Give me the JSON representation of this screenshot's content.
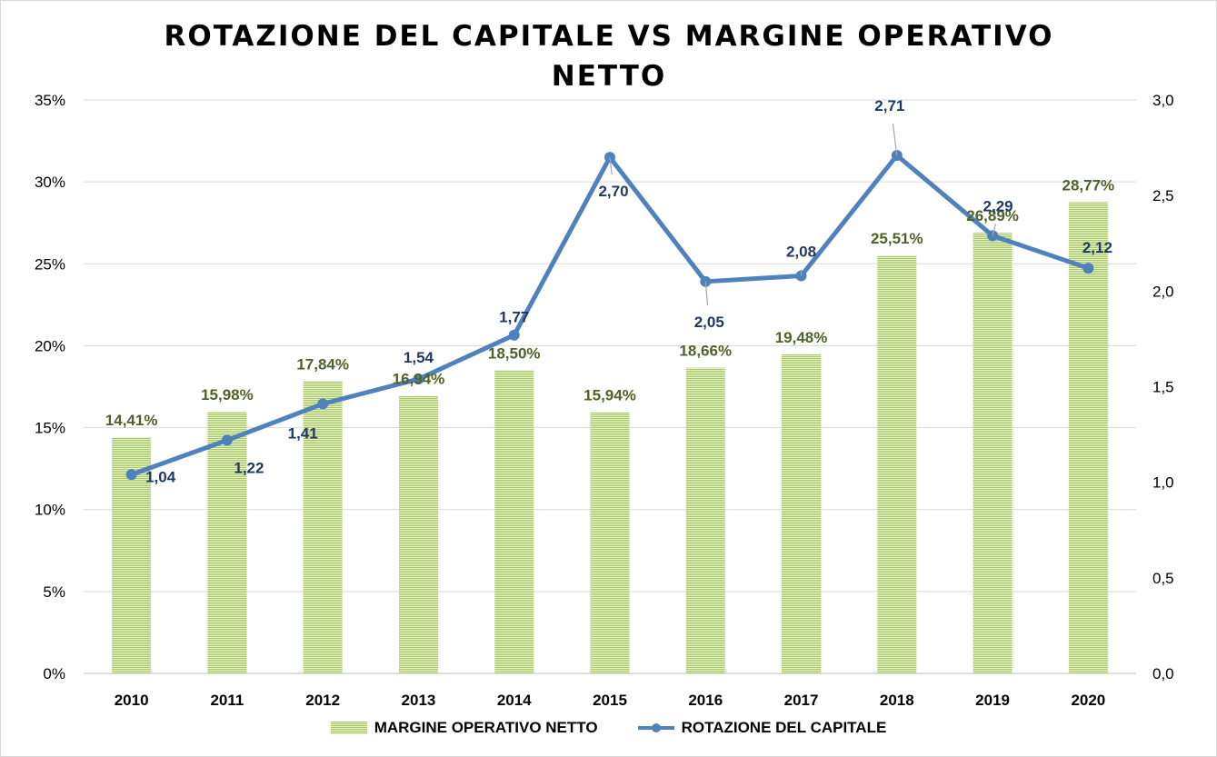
{
  "chart_data": {
    "type": "bar",
    "title": "ROTAZIONE DEL CAPITALE VS MARGINE OPERATIVO NETTO",
    "categories": [
      "2010",
      "2011",
      "2012",
      "2013",
      "2014",
      "2015",
      "2016",
      "2017",
      "2018",
      "2019",
      "2020"
    ],
    "series": [
      {
        "name": "MARGINE OPERATIVO  NETTO",
        "type": "bar",
        "axis": "left",
        "values": [
          14.41,
          15.98,
          17.84,
          16.94,
          18.5,
          15.94,
          18.66,
          19.48,
          25.51,
          26.89,
          28.77
        ],
        "labels": [
          "14,41%",
          "15,98%",
          "17,84%",
          "16,94%",
          "18,50%",
          "15,94%",
          "18,66%",
          "19,48%",
          "25,51%",
          "26,89%",
          "28,77%"
        ],
        "color": "#9bbb59",
        "label_color": "#4f6228"
      },
      {
        "name": "ROTAZIONE DEL CAPITALE",
        "type": "line",
        "axis": "right",
        "values": [
          1.04,
          1.22,
          1.41,
          1.54,
          1.77,
          2.7,
          2.05,
          2.08,
          2.71,
          2.29,
          2.12
        ],
        "labels": [
          "1,04",
          "1,22",
          "1,41",
          "1,54",
          "1,77",
          "2,70",
          "2,05",
          "2,08",
          "2,71",
          "2,29",
          "2,12"
        ],
        "color": "#4f81bd",
        "label_color": "#1f3864"
      }
    ],
    "y_left": {
      "min": 0,
      "max": 35,
      "ticks": [
        "0%",
        "5%",
        "10%",
        "15%",
        "20%",
        "25%",
        "30%",
        "35%"
      ]
    },
    "y_right": {
      "min": 0,
      "max": 3,
      "ticks": [
        "0,0",
        "0,5",
        "1,0",
        "1,5",
        "2,0",
        "2,5",
        "3,0"
      ]
    },
    "grid": true,
    "legend_position": "bottom"
  }
}
